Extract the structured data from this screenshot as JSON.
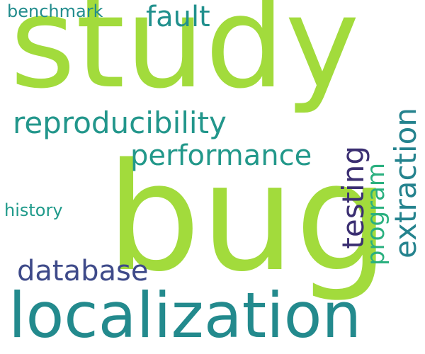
{
  "words": {
    "study": {
      "text": "study",
      "color": "#a2db3c"
    },
    "bug": {
      "text": "bug",
      "color": "#a2db3c"
    },
    "localization": {
      "text": "localization",
      "color": "#238a8d"
    },
    "reproducibility": {
      "text": "reproducibility",
      "color": "#22968b"
    },
    "performance": {
      "text": "performance",
      "color": "#22988a"
    },
    "database": {
      "text": "database",
      "color": "#3e4a89"
    },
    "fault": {
      "text": "fault",
      "color": "#21908d"
    },
    "benchmark": {
      "text": "benchmark",
      "color": "#228c8d"
    },
    "history": {
      "text": "history",
      "color": "#1f9a8a"
    },
    "testing": {
      "text": "testing",
      "color": "#3b2f72"
    },
    "program": {
      "text": "program",
      "color": "#2ab07f"
    },
    "extraction": {
      "text": "extraction",
      "color": "#25838e"
    }
  }
}
